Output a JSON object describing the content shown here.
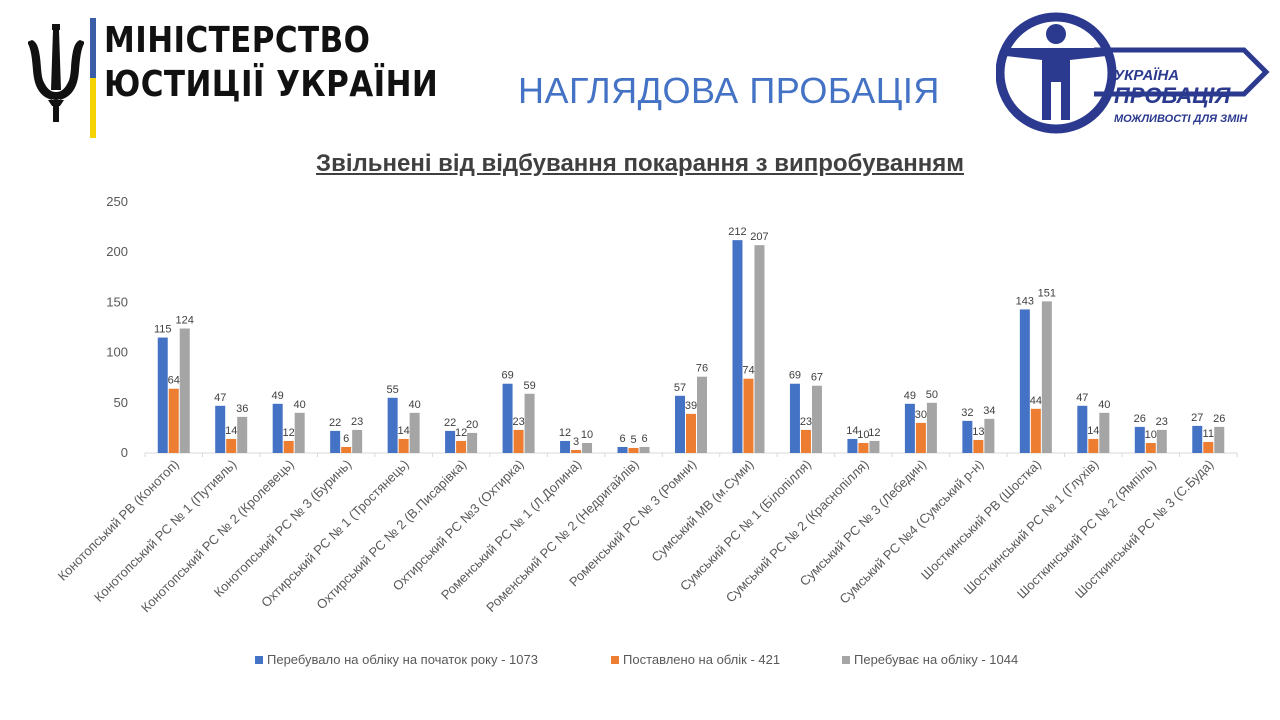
{
  "header": {
    "ministry_line1": "МІНІСТЕРСТВО",
    "ministry_line2": "ЮСТИЦІЇ УКРАЇНИ",
    "slide_title": "НАГЛЯДОВА ПРОБАЦІЯ",
    "logo_text_top": "УКРАЇНА",
    "logo_text_main": "ПРОБАЦІЯ",
    "logo_text_bottom": "МОЖЛИВОСТІ ДЛЯ ЗМІН"
  },
  "colors": {
    "series1": "#4472C4",
    "series2": "#ED7D31",
    "series3": "#A5A5A5",
    "title_blue": "#4472C4",
    "logo_blue": "#2B3A8F"
  },
  "chart_data": {
    "type": "bar",
    "title": "Звільнені від відбування покарання з випробуванням",
    "xlabel": "",
    "ylabel": "",
    "ylim": [
      0,
      250
    ],
    "yticks": [
      0,
      50,
      100,
      150,
      200,
      250
    ],
    "grid": false,
    "legend_position": "bottom",
    "categories": [
      "Конотопський РВ (Конотоп)",
      "Конотопський РС № 1 (Путивль)",
      "Конотопський РС № 2 (Кролевець)",
      "Конотопський РС № 3 (Буринь)",
      "Охтирський РС № 1 (Тростянець)",
      "Охтирський РС № 2 (В.Писарівка)",
      "Охтирський РС №3 (Охтирка)",
      "Роменський РС № 1 (Л.Долина)",
      "Роменський РС № 2 (Недригайлів)",
      "Роменський РС № 3 (Ромни)",
      "Сумський МВ (м.Суми)",
      "Сумський РС № 1 (Білопілля)",
      "Сумський РС № 2 (Краснопілля)",
      "Сумський РС № 3 (Лебедин)",
      "Сумський РС №4 (Сумський р-н)",
      "Шосткинський РВ (Шостка)",
      "Шосткинський РС № 1 (Глухів)",
      "Шосткинський РС № 2 (Ямпіль)",
      "Шосткинський РС № 3 (С.Буда)"
    ],
    "series": [
      {
        "name": "Перебувало на обліку на початок року - 1073",
        "values": [
          115,
          47,
          49,
          22,
          55,
          22,
          69,
          12,
          6,
          57,
          212,
          69,
          14,
          49,
          32,
          143,
          47,
          26,
          27
        ]
      },
      {
        "name": "Поставлено на облік - 421",
        "values": [
          64,
          14,
          12,
          6,
          14,
          12,
          23,
          3,
          5,
          39,
          74,
          23,
          10,
          30,
          13,
          44,
          14,
          10,
          11
        ]
      },
      {
        "name": "Перебуває на обліку - 1044",
        "values": [
          124,
          36,
          40,
          23,
          40,
          20,
          59,
          10,
          6,
          76,
          207,
          67,
          12,
          50,
          34,
          151,
          40,
          23,
          26
        ]
      }
    ]
  }
}
